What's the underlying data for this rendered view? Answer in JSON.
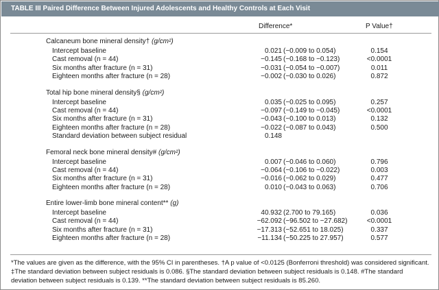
{
  "table": {
    "title": "TABLE III Paired Difference Between Injured Adolescents and Healthy Controls at Each Visit",
    "col_difference": "Difference*",
    "col_pvalue": "P Value†"
  },
  "sections": [
    {
      "title": "Calcaneum bone mineral density†",
      "unit": "(g/cm²)",
      "rows": [
        {
          "label": "Intercept baseline",
          "diff": "0.021",
          "ci": "(−0.009 to 0.054)",
          "p": "0.154"
        },
        {
          "label": "Cast removal (n = 44)",
          "diff": "−0.145",
          "ci": "(−0.168 to −0.123)",
          "p": "<0.0001"
        },
        {
          "label": "Six months after fracture (n = 31)",
          "diff": "−0.031",
          "ci": "(−0.054 to −0.007)",
          "p": "0.011"
        },
        {
          "label": "Eighteen months after fracture (n = 28)",
          "diff": "−0.002",
          "ci": "(−0.030 to 0.026)",
          "p": "0.872"
        }
      ]
    },
    {
      "title": "Total hip bone mineral density§",
      "unit": "(g/cm²)",
      "rows": [
        {
          "label": "Intercept baseline",
          "diff": "0.035",
          "ci": "(−0.025 to 0.095)",
          "p": "0.257"
        },
        {
          "label": "Cast removal (n = 44)",
          "diff": "−0.097",
          "ci": "(−0.149 to −0.045)",
          "p": "<0.0001"
        },
        {
          "label": "Six months after fracture (n = 31)",
          "diff": "−0.043",
          "ci": "(−0.100 to 0.013)",
          "p": "0.132"
        },
        {
          "label": "Eighteen months after fracture (n = 28)",
          "diff": "−0.022",
          "ci": "(−0.087 to 0.043)",
          "p": "0.500"
        },
        {
          "label": "Standard deviation between subject residual",
          "diff": "0.148",
          "ci": "",
          "p": ""
        }
      ]
    },
    {
      "title": "Femoral neck bone mineral density#",
      "unit": "(g/cm²)",
      "rows": [
        {
          "label": "Intercept baseline",
          "diff": "0.007",
          "ci": "(−0.046 to 0.060)",
          "p": "0.796"
        },
        {
          "label": "Cast removal (n = 44)",
          "diff": "−0.064",
          "ci": "(−0.106 to −0.022)",
          "p": "0.003"
        },
        {
          "label": "Six months after fracture (n = 31)",
          "diff": "−0.016",
          "ci": "(−0.062 to 0.029)",
          "p": "0.477"
        },
        {
          "label": "Eighteen months after fracture (n = 28)",
          "diff": "0.010",
          "ci": "(−0.043 to 0.063)",
          "p": "0.706"
        }
      ]
    },
    {
      "title": "Entire lower-limb bone mineral content**",
      "unit": "(g)",
      "rows": [
        {
          "label": "Intercept baseline",
          "diff": "40.932",
          "ci": "(2.700 to 79.165)",
          "p": "0.036"
        },
        {
          "label": "Cast removal (n = 44)",
          "diff": "−62.092",
          "ci": "(−96.502 to −27.682)",
          "p": "<0.0001"
        },
        {
          "label": "Six months after fracture (n = 31)",
          "diff": "−17.313",
          "ci": "(−52.651 to 18.025)",
          "p": "0.337"
        },
        {
          "label": "Eighteen months after fracture (n = 28)",
          "diff": "−11.134",
          "ci": "(−50.225 to 27.957)",
          "p": "0.577"
        }
      ]
    }
  ],
  "footnote": "*The values are given as the difference, with the 95% CI in parentheses. †A p value of <0.0125 (Bonferroni threshold) was considered significant. ‡The standard deviation between subject residuals is 0.086. §The standard deviation between subject residuals is 0.148. #The standard deviation between subject residuals is 0.139. **The standard deviation between subject residuals is 85.260.",
  "colors": {
    "title_bar": "#7a8a96",
    "rule": "#9a9a9a",
    "text": "#1a1a1a"
  }
}
